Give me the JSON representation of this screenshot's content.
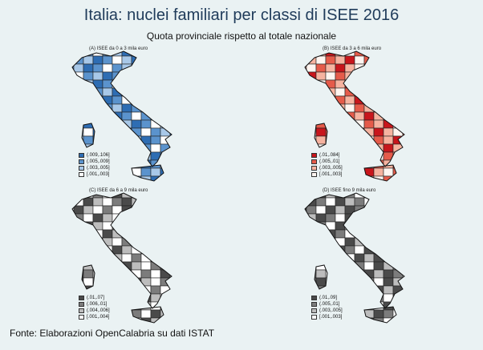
{
  "title": "Italia: nuclei familiari per classi di ISEE 2016",
  "subtitle": "Quota provinciale rispetto al totale nazionale",
  "source": "Fonte: Elaborazioni OpenCalabria su dati ISTAT",
  "panels": [
    {
      "title": "(A) ISEE da 0 a 3 mila euro",
      "colors": [
        "#2e6db3",
        "#5b93cd",
        "#a8c8e8",
        "#ffffff"
      ],
      "legend": [
        "(.009,.106]",
        "(.005,.009]",
        "(.003,.005]",
        "[.001,.003]"
      ]
    },
    {
      "title": "(B) ISEE da 3 a 6 mila euro",
      "colors": [
        "#c8161c",
        "#e55b4a",
        "#f6b3a0",
        "#fff5f0"
      ],
      "legend": [
        "(.01,.084]",
        "(.005,.01]",
        "(.003,.005]",
        "[.001,.003]"
      ]
    },
    {
      "title": "(C) ISEE da 6 a 9 mila euro",
      "colors": [
        "#4a4a4a",
        "#7c7c7c",
        "#bdbdbd",
        "#ffffff"
      ],
      "legend": [
        "(.01,.07]",
        "(.006,.01]",
        "(.004,.006]",
        "[.001,.004]"
      ]
    },
    {
      "title": "(D) ISEE fino 9 mila euro",
      "colors": [
        "#4a4a4a",
        "#7c7c7c",
        "#bdbdbd",
        "#ffffff"
      ],
      "legend": [
        "(.01,.09]",
        "(.005,.01]",
        "(.003,.005]",
        "[.001,.003]"
      ]
    }
  ]
}
